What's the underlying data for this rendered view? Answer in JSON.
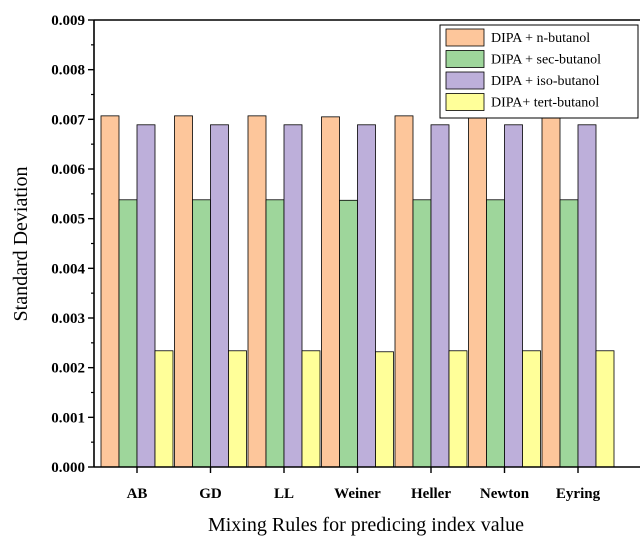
{
  "chart_data": {
    "type": "bar",
    "categories": [
      "AB",
      "GD",
      "LL",
      "Weiner",
      "Heller",
      "Newton",
      "Eyring"
    ],
    "series": [
      {
        "name": "DIPA + n-butanol",
        "color": "#FDC69B",
        "values": [
          0.00707,
          0.00707,
          0.00707,
          0.00705,
          0.00707,
          0.00707,
          0.00707
        ]
      },
      {
        "name": "DIPA + sec-butanol",
        "color": "#9ED69B",
        "values": [
          0.00538,
          0.00538,
          0.00538,
          0.00537,
          0.00538,
          0.00538,
          0.00538
        ]
      },
      {
        "name": "DIPA + iso-butanol",
        "color": "#BDAFDA",
        "values": [
          0.00689,
          0.00689,
          0.00689,
          0.00689,
          0.00689,
          0.00689,
          0.00689
        ]
      },
      {
        "name": "DIPA+ tert-butanol",
        "color": "#FFFF99",
        "values": [
          0.00234,
          0.00234,
          0.00234,
          0.00232,
          0.00234,
          0.00234,
          0.00234
        ]
      }
    ],
    "xlabel": "Mixing Rules for predicing index value",
    "ylabel": "Standard Deviation",
    "ylim": [
      0,
      0.009
    ],
    "yticks": [
      "0.000",
      "0.001",
      "0.002",
      "0.003",
      "0.004",
      "0.005",
      "0.006",
      "0.007",
      "0.008",
      "0.009"
    ],
    "grid": false,
    "legend_position": "top-right"
  }
}
